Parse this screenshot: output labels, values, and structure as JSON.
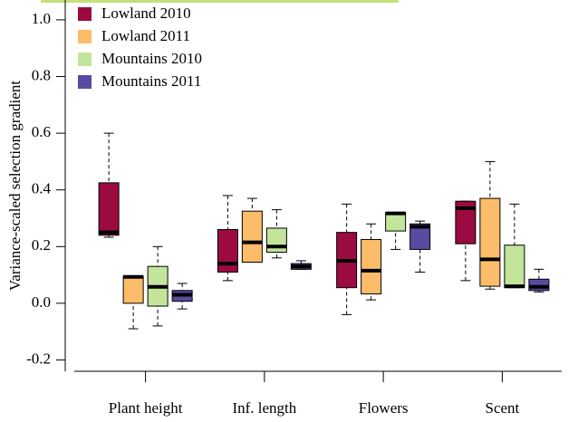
{
  "chart_data": {
    "type": "box",
    "ylabel": "Variance-scaled selection gradient",
    "categories": [
      "Plant height",
      "Inf. length",
      "Flowers",
      "Scent"
    ],
    "ylim": [
      -0.24,
      1.07
    ],
    "yticks": [
      {
        "value": -0.2,
        "label": "-0.2"
      },
      {
        "value": 0,
        "label": "0.0"
      },
      {
        "value": 0.2,
        "label": "0.2"
      },
      {
        "value": 0.4,
        "label": "0.4"
      },
      {
        "value": 0.6,
        "label": "0.6"
      },
      {
        "value": 0.8,
        "label": "0.8"
      },
      {
        "value": 1.0,
        "label": "1.0"
      }
    ],
    "legend_position": "top-left",
    "series": [
      {
        "name": "Lowland 2010",
        "color": "#9b0a40",
        "low": [
          0.233,
          0.08,
          -0.04,
          0.08
        ],
        "q1": [
          0.24,
          0.11,
          0.055,
          0.21
        ],
        "median": [
          0.25,
          0.14,
          0.15,
          0.335
        ],
        "q3": [
          0.425,
          0.26,
          0.25,
          0.36
        ],
        "high": [
          0.6,
          0.38,
          0.35,
          0.36
        ]
      },
      {
        "name": "Lowland 2011",
        "color": "#fbbd6a",
        "low": [
          -0.09,
          0.145,
          0.012,
          0.05
        ],
        "q1": [
          0.0,
          0.145,
          0.033,
          0.06
        ],
        "median": [
          0.093,
          0.215,
          0.115,
          0.155
        ],
        "q3": [
          0.096,
          0.325,
          0.225,
          0.37
        ],
        "high": [
          0.096,
          0.37,
          0.28,
          0.5
        ]
      },
      {
        "name": "Mountains 2010",
        "color": "#c2e59b",
        "low": [
          -0.08,
          0.16,
          0.19,
          0.055
        ],
        "q1": [
          -0.01,
          0.18,
          0.255,
          0.055
        ],
        "median": [
          0.058,
          0.2,
          0.317,
          0.06
        ],
        "q3": [
          0.13,
          0.265,
          0.32,
          0.205
        ],
        "high": [
          0.2,
          0.33,
          0.32,
          0.35
        ]
      },
      {
        "name": "Mountains 2011",
        "color": "#5a4aa1",
        "low": [
          -0.02,
          0.12,
          0.11,
          0.04
        ],
        "q1": [
          0.007,
          0.12,
          0.19,
          0.045
        ],
        "median": [
          0.03,
          0.13,
          0.27,
          0.058
        ],
        "q3": [
          0.045,
          0.14,
          0.28,
          0.085
        ],
        "high": [
          0.07,
          0.15,
          0.29,
          0.12
        ]
      }
    ]
  }
}
